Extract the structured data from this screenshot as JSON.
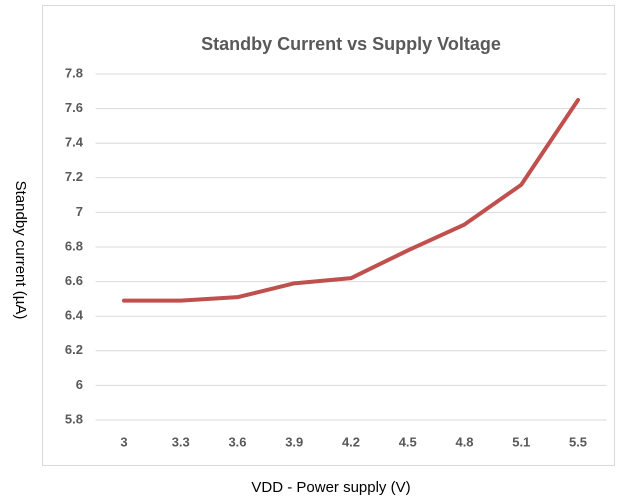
{
  "chart_data": {
    "type": "line",
    "title": "Standby Current vs Supply Voltage",
    "x_label": "VDD - Power supply (V)",
    "y_label": "Standby current (µA)",
    "categories": [
      "3",
      "3.3",
      "3.6",
      "3.9",
      "4.2",
      "4.5",
      "4.8",
      "5.1",
      "5.5"
    ],
    "series": [
      {
        "name": "Standby current",
        "color": "#c0504d",
        "values": [
          6.49,
          6.49,
          6.51,
          6.59,
          6.62,
          6.78,
          6.93,
          7.16,
          7.65
        ]
      }
    ],
    "ylim": [
      5.8,
      7.8
    ],
    "yticks": [
      5.8,
      6,
      6.2,
      6.4,
      6.6,
      6.8,
      7,
      7.2,
      7.4,
      7.6,
      7.8
    ],
    "grid": true,
    "legend": false
  }
}
